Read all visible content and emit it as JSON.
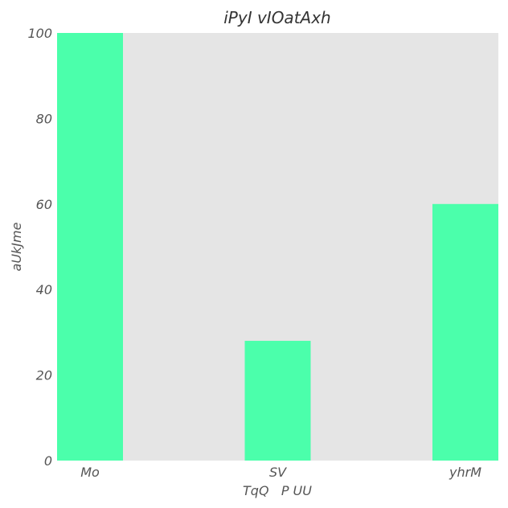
{
  "chart_data": {
    "type": "bar",
    "title": "iPyI vIOatAxh",
    "xlabel": "TqQ   P UU",
    "ylabel": "aUkJme",
    "categories": [
      "Mo",
      "SV",
      "yhrM"
    ],
    "values": [
      100,
      28,
      60
    ],
    "ylim": [
      0,
      100
    ],
    "yticks": [
      0,
      20,
      40,
      60,
      80,
      100
    ],
    "grid": false,
    "legend": "none"
  },
  "colors": {
    "bar": "#4bffab",
    "plot_background": "#e5e5e5",
    "text": "#555555"
  }
}
